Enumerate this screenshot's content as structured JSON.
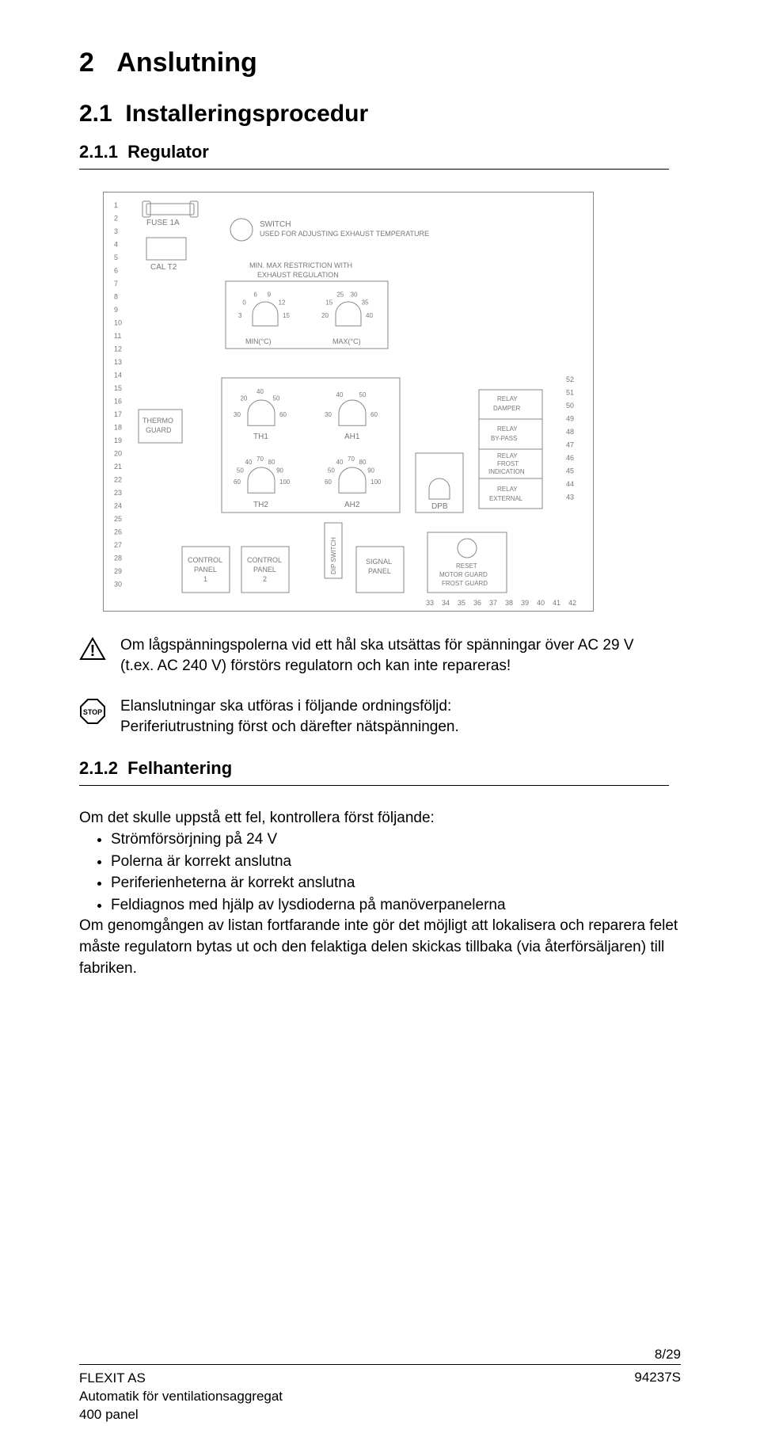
{
  "heading": {
    "number": "2",
    "title": "Anslutning",
    "sub_number": "2.1",
    "sub_title": "Installeringsprocedur",
    "subsub_number": "2.1.1",
    "subsub_title": "Regulator",
    "felh_number": "2.1.2",
    "felh_title": "Felhantering"
  },
  "diagram": {
    "left_pins": [
      "1",
      "2",
      "3",
      "4",
      "5",
      "6",
      "7",
      "8",
      "9",
      "10",
      "11",
      "12",
      "13",
      "14",
      "15",
      "16",
      "17",
      "18",
      "19",
      "20",
      "21",
      "22",
      "23",
      "24",
      "25",
      "26",
      "27",
      "28",
      "29",
      "30"
    ],
    "right_pins": [
      "52",
      "51",
      "50",
      "49",
      "48",
      "47",
      "46",
      "45",
      "44",
      "43"
    ],
    "bottom_pins": [
      "33",
      "34",
      "35",
      "36",
      "37",
      "38",
      "39",
      "40",
      "41",
      "42"
    ],
    "labels": {
      "fuse": "FUSE 1A",
      "cal": "CAL T2",
      "switch": "SWITCH",
      "switch_sub": "USED FOR ADJUSTING EXHAUST TEMPERATURE",
      "restriction1": "MIN. MAX RESTRICTION WITH",
      "restriction2": "EXHAUST REGULATION",
      "min_c": "MIN(°C)",
      "max_c": "MAX(°C)",
      "thermo_guard": "THERMO\nGUARD",
      "th1": "TH1",
      "th2": "TH2",
      "ah1": "AH1",
      "ah2": "AH2",
      "dpb": "DPB",
      "dip": "DIP SWITCH",
      "control1": "CONTROL\nPANEL\n1",
      "control2": "CONTROL\nPANEL\n2",
      "signal": "SIGNAL\nPANEL",
      "reset": "RESET\nMOTOR GUARD\nFROST GUARD",
      "relay_damper": "RELAY\nDAMPER",
      "relay_bypass": "RELAY\nBY-PASS",
      "relay_frost": "RELAY\nFROST\nINDICATION",
      "relay_external": "RELAY\nEXTERNAL"
    },
    "dial_min": {
      "nums": [
        "3",
        "0",
        "6",
        "9",
        "12",
        "15"
      ]
    },
    "dial_max": {
      "nums": [
        "20",
        "15",
        "25",
        "30",
        "35",
        "40"
      ]
    },
    "dial_th1": {
      "nums": [
        "30",
        "20",
        "40",
        "50",
        "60"
      ]
    },
    "dial_ah1": {
      "nums": [
        "30",
        "40",
        "50",
        "60"
      ]
    },
    "dial_th2": {
      "nums": [
        "60",
        "50",
        "40",
        "70",
        "80",
        "90",
        "100"
      ]
    },
    "dial_ah2": {
      "nums": [
        "60",
        "50",
        "40",
        "70",
        "80",
        "90",
        "100"
      ]
    },
    "colors": {
      "line": "#888888",
      "text": "#777777",
      "bg": "#ffffff"
    }
  },
  "warning": {
    "text": "Om lågspänningspolerna vid ett hål ska utsättas för spänningar över AC 29 V (t.ex. AC 240 V) förstörs regulatorn och kan inte repareras!"
  },
  "stop": {
    "label": "STOP",
    "text": "Elanslutningar ska utföras i följande ordningsföljd:\nPeriferiutrustning först och därefter nätspänningen."
  },
  "felh": {
    "intro": "Om det skulle uppstå ett fel, kontrollera först följande:",
    "bullets": [
      "Strömförsörjning på 24 V",
      "Polerna är korrekt anslutna",
      "Periferienheterna är korrekt anslutna",
      "Feldiagnos med hjälp av lysdioderna på manöverpanelerna"
    ],
    "outro": "Om genomgången av listan fortfarande inte gör det möjligt att lokalisera och reparera felet måste regulatorn bytas ut och den felaktiga delen skickas tillbaka (via återförsäljaren) till fabriken."
  },
  "footer": {
    "company": "FLEXIT AS",
    "line2": "Automatik för ventilationsaggregat",
    "line3": "400 panel",
    "page": "8/29",
    "doc": "94237S"
  }
}
